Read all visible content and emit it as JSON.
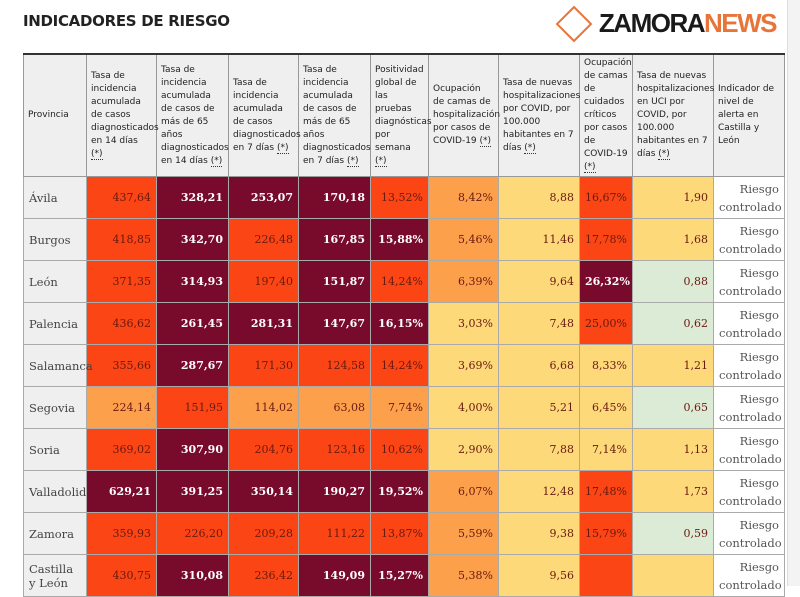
{
  "title": "INDICADORES DE RIESGO",
  "headers": [
    "Provincia",
    "Tasa de incidencia acumulada de casos diagnosticados en 14 días",
    "Tasa de incidencia acumulada de casos de más de 65 años diagnosticados en 14 días",
    "Tasa de incidencia acumulada de casos diagnosticados en 7 días",
    "Tasa de incidencia acumulada de casos de más de 65 años diagnosticados en 7 días",
    "Positividad global de las pruebas diagnósticas por semana",
    "Ocupación de camas de hospitalización por casos de COVID-19",
    "Tasa de nuevas hospitalizaciones por COVID, por 100.000 habitantes en 7 días",
    "Ocupación de camas de cuidados críticos por casos de COVID-19",
    "Tasa de nuevas hospitalizaciones en UCI por COVID, por 100.000 habitantes en 7 días",
    "Indicador de nivel de alerta en Castilla y León"
  ],
  "footnote_mark": "(*)",
  "rows": [
    {
      "provincia": "Ávila",
      "values": [
        "437,64",
        "328,21",
        "253,07",
        "170,18",
        "13,52%",
        "8,42%",
        "8,88",
        "16,67%",
        "1,90"
      ],
      "levels": [
        "R",
        "D",
        "D",
        "D",
        "R",
        "O",
        "Y",
        "R",
        "Y"
      ],
      "alert": "Riesgo controlado"
    },
    {
      "provincia": "Burgos",
      "values": [
        "418,85",
        "342,70",
        "226,48",
        "167,85",
        "15,88%",
        "5,46%",
        "11,46",
        "17,78%",
        "1,68"
      ],
      "levels": [
        "R",
        "D",
        "R",
        "D",
        "D",
        "O",
        "Y",
        "R",
        "Y"
      ],
      "alert": "Riesgo controlado"
    },
    {
      "provincia": "León",
      "values": [
        "371,35",
        "314,93",
        "197,40",
        "151,87",
        "14,24%",
        "6,39%",
        "9,64",
        "26,32%",
        "0,88"
      ],
      "levels": [
        "R",
        "D",
        "R",
        "D",
        "R",
        "O",
        "Y",
        "D",
        "G"
      ],
      "alert": "Riesgo controlado"
    },
    {
      "provincia": "Palencia",
      "values": [
        "436,62",
        "261,45",
        "281,31",
        "147,67",
        "16,15%",
        "3,03%",
        "7,48",
        "25,00%",
        "0,62"
      ],
      "levels": [
        "R",
        "D",
        "D",
        "D",
        "D",
        "Y",
        "Y",
        "R",
        "G"
      ],
      "alert": "Riesgo controlado"
    },
    {
      "provincia": "Salamanca",
      "values": [
        "355,66",
        "287,67",
        "171,30",
        "124,58",
        "14,24%",
        "3,69%",
        "6,68",
        "8,33%",
        "1,21"
      ],
      "levels": [
        "R",
        "D",
        "R",
        "R",
        "R",
        "Y",
        "Y",
        "Y",
        "Y"
      ],
      "alert": "Riesgo controlado"
    },
    {
      "provincia": "Segovia",
      "values": [
        "224,14",
        "151,95",
        "114,02",
        "63,08",
        "7,74%",
        "4,00%",
        "5,21",
        "6,45%",
        "0,65"
      ],
      "levels": [
        "O",
        "R",
        "O",
        "O",
        "O",
        "Y",
        "Y",
        "Y",
        "G"
      ],
      "alert": "Riesgo controlado"
    },
    {
      "provincia": "Soria",
      "values": [
        "369,02",
        "307,90",
        "204,76",
        "123,16",
        "10,62%",
        "2,90%",
        "7,88",
        "7,14%",
        "1,13"
      ],
      "levels": [
        "R",
        "D",
        "R",
        "R",
        "R",
        "Y",
        "Y",
        "Y",
        "Y"
      ],
      "alert": "Riesgo controlado"
    },
    {
      "provincia": "Valladolid",
      "values": [
        "629,21",
        "391,25",
        "350,14",
        "190,27",
        "19,52%",
        "6,07%",
        "12,48",
        "17,48%",
        "1,73"
      ],
      "levels": [
        "D",
        "D",
        "D",
        "D",
        "D",
        "O",
        "Y",
        "R",
        "Y"
      ],
      "alert": "Riesgo controlado"
    },
    {
      "provincia": "Zamora",
      "values": [
        "359,93",
        "226,20",
        "209,28",
        "111,22",
        "13,87%",
        "5,59%",
        "9,38",
        "15,79%",
        "0,59"
      ],
      "levels": [
        "R",
        "R",
        "R",
        "R",
        "R",
        "O",
        "Y",
        "R",
        "G"
      ],
      "alert": "Riesgo controlado"
    },
    {
      "provincia": "Castilla y León",
      "values": [
        "430,75",
        "310,08",
        "236,42",
        "149,09",
        "15,27%",
        "5,38%",
        "9,56",
        "",
        ""
      ],
      "levels": [
        "R",
        "D",
        "R",
        "D",
        "D",
        "O",
        "Y",
        "R",
        "Y"
      ],
      "alert": "Riesgo controlado"
    }
  ],
  "logo": {
    "part1": "ZAMORA",
    "part2": "NEWS"
  }
}
